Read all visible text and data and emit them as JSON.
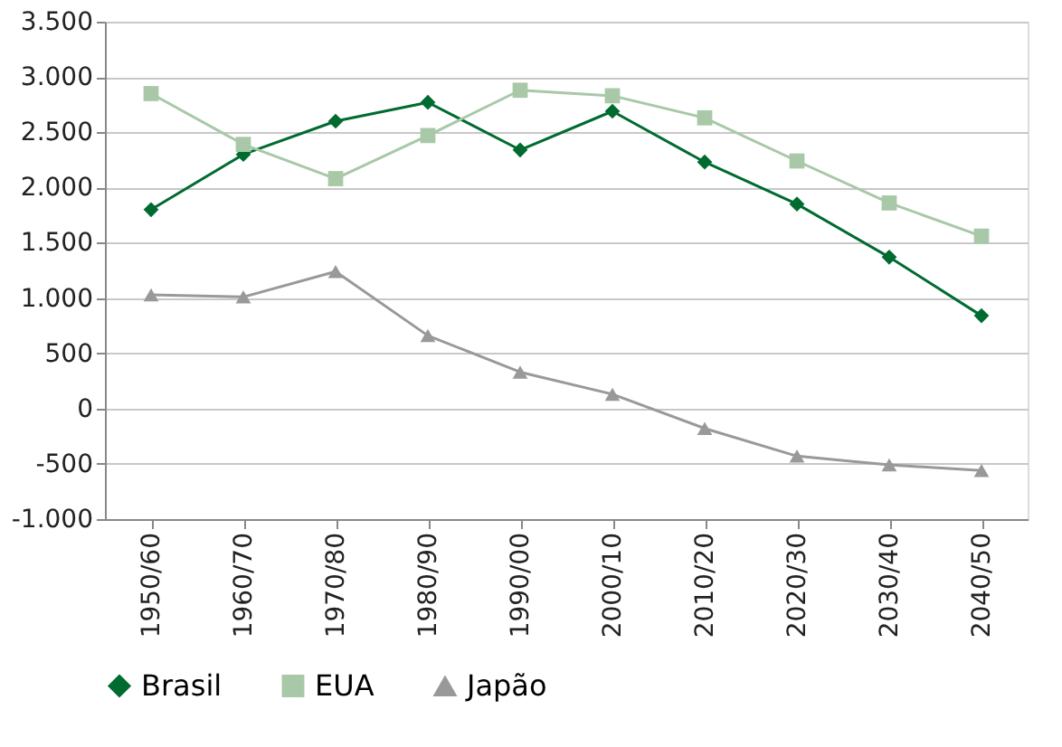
{
  "chart_data": {
    "type": "line",
    "categories": [
      "1950/60",
      "1960/70",
      "1970/80",
      "1980/90",
      "1990/00",
      "2000/10",
      "2010/20",
      "2020/30",
      "2030/40",
      "2040/50"
    ],
    "series": [
      {
        "name": "Brasil",
        "color": "#006b30",
        "marker": "diamond",
        "values": [
          1800,
          2300,
          2600,
          2770,
          2340,
          2690,
          2230,
          1850,
          1370,
          840
        ]
      },
      {
        "name": "EUA",
        "color": "#a8c8a8",
        "marker": "square",
        "values": [
          2850,
          2390,
          2080,
          2470,
          2880,
          2830,
          2630,
          2240,
          1860,
          1560
        ]
      },
      {
        "name": "Japão",
        "color": "#999999",
        "marker": "triangle",
        "values": [
          1030,
          1010,
          1240,
          660,
          330,
          130,
          -180,
          -430,
          -510,
          -560
        ]
      }
    ],
    "ylim": [
      -1000,
      3500
    ],
    "yticks": [
      {
        "value": -1000,
        "label": "-1.000"
      },
      -500,
      0,
      500,
      {
        "value": 1000,
        "label": "1.000"
      },
      {
        "value": 1500,
        "label": "1.500"
      },
      {
        "value": 2000,
        "label": "2.000"
      },
      {
        "value": 2500,
        "label": "2.500"
      },
      {
        "value": 3000,
        "label": "3.000"
      },
      {
        "value": 3500,
        "label": "3.500"
      }
    ],
    "grid": "y",
    "legend": "bottom",
    "line_style": "solid"
  }
}
